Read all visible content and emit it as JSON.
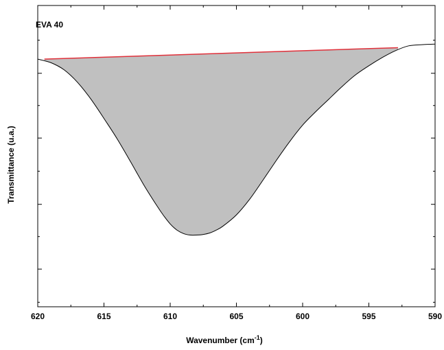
{
  "chart_data": {
    "type": "line",
    "title": "EVA 40",
    "xlabel": "Wavenumber (cm",
    "xlabel_sup": "-1",
    "xlabel_close": ")",
    "ylabel": "Transmittance (u.a.)",
    "xlim": [
      620,
      590
    ],
    "x_reversed": true,
    "ylim": [
      0,
      1
    ],
    "y_tick_labels_shown": false,
    "x_ticks": [
      620,
      615,
      610,
      605,
      600,
      595,
      590
    ],
    "x_tick_labels": [
      "620",
      "615",
      "610",
      "605",
      "600",
      "595",
      "590"
    ],
    "grid": false,
    "legend": "none",
    "series": [
      {
        "role": "spectrum",
        "color": "#000000",
        "x": [
          620,
          619,
          618,
          617,
          616,
          615,
          614,
          613,
          612,
          611,
          610.5,
          610,
          609.5,
          609,
          608.5,
          608,
          607.5,
          607,
          606.5,
          606,
          605,
          604,
          603,
          602,
          601,
          600,
          599,
          598,
          597,
          596,
          595,
          594,
          593,
          592,
          591,
          590
        ],
        "y": [
          0.822,
          0.81,
          0.786,
          0.745,
          0.69,
          0.625,
          0.557,
          0.482,
          0.405,
          0.335,
          0.303,
          0.275,
          0.255,
          0.243,
          0.238,
          0.238,
          0.24,
          0.245,
          0.255,
          0.268,
          0.305,
          0.357,
          0.42,
          0.485,
          0.547,
          0.603,
          0.648,
          0.69,
          0.732,
          0.77,
          0.8,
          0.827,
          0.85,
          0.866,
          0.87,
          0.872
        ]
      },
      {
        "role": "baseline",
        "color": "#e0303a",
        "x": [
          619.5,
          592.8
        ],
        "y": [
          0.822,
          0.86
        ]
      }
    ],
    "fill": {
      "color": "#c0c0c0",
      "between": [
        "baseline",
        "spectrum"
      ],
      "x_range": [
        619.5,
        592.8
      ]
    }
  }
}
